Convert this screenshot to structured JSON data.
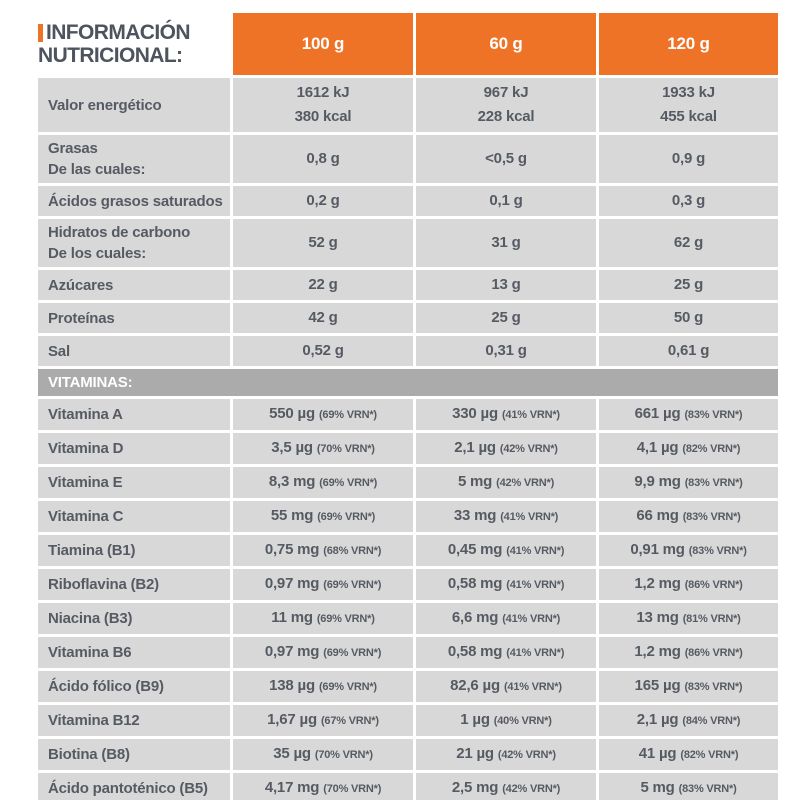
{
  "colors": {
    "orange": "#EF7326",
    "cell_gray": "#D8D8D8",
    "section_gray": "#ABABAB",
    "text": "#565B63",
    "title_text": "#4D545D"
  },
  "header": {
    "title_line1": "INFORMACIÓN",
    "title_line2": "NUTRICIONAL:",
    "columns": [
      "100 g",
      "60 g",
      "120 g"
    ]
  },
  "macro_rows": [
    {
      "label": "Valor energético",
      "sublabel": "",
      "values": [
        [
          "1612 kJ",
          "380 kcal"
        ],
        [
          "967 kJ",
          "228 kcal"
        ],
        [
          "1933 kJ",
          "455 kcal"
        ]
      ]
    },
    {
      "label": "Grasas",
      "sublabel": "De las cuales:",
      "values": [
        [
          "0,8 g"
        ],
        [
          "<0,5 g"
        ],
        [
          "0,9 g"
        ]
      ]
    },
    {
      "label": "Ácidos grasos saturados",
      "sublabel": "",
      "values": [
        [
          "0,2 g"
        ],
        [
          "0,1 g"
        ],
        [
          "0,3 g"
        ]
      ]
    },
    {
      "label": "Hidratos de carbono",
      "sublabel": "De los cuales:",
      "values": [
        [
          "52 g"
        ],
        [
          "31 g"
        ],
        [
          "62 g"
        ]
      ]
    },
    {
      "label": "Azúcares",
      "sublabel": "",
      "values": [
        [
          "22 g"
        ],
        [
          "13 g"
        ],
        [
          "25 g"
        ]
      ]
    },
    {
      "label": "Proteínas",
      "sublabel": "",
      "values": [
        [
          "42 g"
        ],
        [
          "25 g"
        ],
        [
          "50 g"
        ]
      ]
    },
    {
      "label": "Sal",
      "sublabel": "",
      "values": [
        [
          "0,52 g"
        ],
        [
          "0,31 g"
        ],
        [
          "0,61 g"
        ]
      ]
    }
  ],
  "vitamins": {
    "title": "VITAMINAS:",
    "rows": [
      {
        "label": "Vitamina A",
        "values": [
          {
            "amount": "550 µg",
            "vrn": "(69% VRN*)"
          },
          {
            "amount": "330 µg",
            "vrn": "(41% VRN*)"
          },
          {
            "amount": "661 µg",
            "vrn": "(83% VRN*)"
          }
        ]
      },
      {
        "label": "Vitamina D",
        "values": [
          {
            "amount": "3,5 µg",
            "vrn": "(70% VRN*)"
          },
          {
            "amount": "2,1 µg",
            "vrn": "(42% VRN*)"
          },
          {
            "amount": "4,1 µg",
            "vrn": "(82% VRN*)"
          }
        ]
      },
      {
        "label": "Vitamina E",
        "values": [
          {
            "amount": "8,3 mg",
            "vrn": "(69% VRN*)"
          },
          {
            "amount": "5 mg",
            "vrn": "(42% VRN*)"
          },
          {
            "amount": "9,9 mg",
            "vrn": "(83% VRN*)"
          }
        ]
      },
      {
        "label": "Vitamina C",
        "values": [
          {
            "amount": "55 mg",
            "vrn": "(69% VRN*)"
          },
          {
            "amount": "33 mg",
            "vrn": "(41% VRN*)"
          },
          {
            "amount": "66 mg",
            "vrn": "(83% VRN*)"
          }
        ]
      },
      {
        "label": "Tiamina (B1)",
        "values": [
          {
            "amount": "0,75 mg",
            "vrn": "(68% VRN*)"
          },
          {
            "amount": "0,45 mg",
            "vrn": "(41% VRN*)"
          },
          {
            "amount": "0,91 mg",
            "vrn": "(83% VRN*)"
          }
        ]
      },
      {
        "label": "Riboflavina (B2)",
        "values": [
          {
            "amount": "0,97 mg",
            "vrn": "(69% VRN*)"
          },
          {
            "amount": "0,58 mg",
            "vrn": "(41% VRN*)"
          },
          {
            "amount": "1,2 mg",
            "vrn": "(86% VRN*)"
          }
        ]
      },
      {
        "label": "Niacina (B3)",
        "values": [
          {
            "amount": "11 mg",
            "vrn": "(69% VRN*)"
          },
          {
            "amount": "6,6 mg",
            "vrn": "(41% VRN*)"
          },
          {
            "amount": "13 mg",
            "vrn": "(81% VRN*)"
          }
        ]
      },
      {
        "label": "Vitamina B6",
        "values": [
          {
            "amount": "0,97 mg",
            "vrn": "(69% VRN*)"
          },
          {
            "amount": "0,58 mg",
            "vrn": "(41% VRN*)"
          },
          {
            "amount": "1,2 mg",
            "vrn": "(86% VRN*)"
          }
        ]
      },
      {
        "label": "Ácido fólico (B9)",
        "values": [
          {
            "amount": "138 µg",
            "vrn": "(69% VRN*)"
          },
          {
            "amount": "82,6 µg",
            "vrn": "(41% VRN*)"
          },
          {
            "amount": "165 µg",
            "vrn": "(83% VRN*)"
          }
        ]
      },
      {
        "label": "Vitamina B12",
        "values": [
          {
            "amount": "1,67 µg",
            "vrn": "(67% VRN*)"
          },
          {
            "amount": "1 µg",
            "vrn": "(40% VRN*)"
          },
          {
            "amount": "2,1 µg",
            "vrn": "(84% VRN*)"
          }
        ]
      },
      {
        "label": "Biotina (B8)",
        "values": [
          {
            "amount": "35 µg",
            "vrn": "(70% VRN*)"
          },
          {
            "amount": "21 µg",
            "vrn": "(42% VRN*)"
          },
          {
            "amount": "41 µg",
            "vrn": "(82% VRN*)"
          }
        ]
      },
      {
        "label": "Ácido pantoténico (B5)",
        "values": [
          {
            "amount": "4,17 mg",
            "vrn": "(70% VRN*)"
          },
          {
            "amount": "2,5 mg",
            "vrn": "(42% VRN*)"
          },
          {
            "amount": "5 mg",
            "vrn": "(83% VRN*)"
          }
        ]
      }
    ]
  }
}
